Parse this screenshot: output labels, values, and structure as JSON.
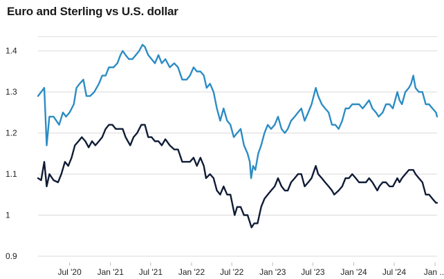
{
  "chart_data": {
    "type": "line",
    "title": "Euro and Sterling vs U.S. dollar",
    "xlabel": "",
    "ylabel": "",
    "ylim": [
      0.9,
      1.45
    ],
    "y_ticks": [
      "0.9",
      "1",
      "1.1",
      "1.2",
      "1.3",
      "1.4"
    ],
    "y_tick_values": [
      0.9,
      1.0,
      1.1,
      1.2,
      1.3,
      1.4
    ],
    "x_ticks": [
      {
        "label": "Jul '20",
        "date": "2020-07-01"
      },
      {
        "label": "Jan '21",
        "date": "2021-01-01"
      },
      {
        "label": "Jul '21",
        "date": "2021-07-01"
      },
      {
        "label": "Jan '22",
        "date": "2022-01-01"
      },
      {
        "label": "Jul '22",
        "date": "2022-07-01"
      },
      {
        "label": "Jan '23",
        "date": "2023-01-01"
      },
      {
        "label": "Jul '23",
        "date": "2023-07-01"
      },
      {
        "label": "Jan '24",
        "date": "2024-01-01"
      },
      {
        "label": "Jul '24",
        "date": "2024-07-01"
      },
      {
        "label": "Jan ...",
        "date": "2025-01-01"
      }
    ],
    "xlim": [
      "2020-02-10",
      "2025-01-10"
    ],
    "grid": true,
    "series": [
      {
        "color": "#2b8cc4",
        "points": [
          [
            "2020-02-10",
            1.29
          ],
          [
            "2020-02-24",
            1.3
          ],
          [
            "2020-03-09",
            1.31
          ],
          [
            "2020-03-20",
            1.17
          ],
          [
            "2020-04-01",
            1.24
          ],
          [
            "2020-04-20",
            1.24
          ],
          [
            "2020-05-15",
            1.22
          ],
          [
            "2020-06-01",
            1.25
          ],
          [
            "2020-06-15",
            1.24
          ],
          [
            "2020-07-01",
            1.25
          ],
          [
            "2020-07-20",
            1.27
          ],
          [
            "2020-08-01",
            1.31
          ],
          [
            "2020-08-15",
            1.32
          ],
          [
            "2020-09-01",
            1.33
          ],
          [
            "2020-09-15",
            1.29
          ],
          [
            "2020-10-01",
            1.29
          ],
          [
            "2020-10-20",
            1.3
          ],
          [
            "2020-11-10",
            1.32
          ],
          [
            "2020-11-25",
            1.34
          ],
          [
            "2020-12-10",
            1.34
          ],
          [
            "2020-12-25",
            1.36
          ],
          [
            "2021-01-15",
            1.36
          ],
          [
            "2021-02-01",
            1.37
          ],
          [
            "2021-02-15",
            1.39
          ],
          [
            "2021-02-25",
            1.4
          ],
          [
            "2021-03-10",
            1.39
          ],
          [
            "2021-03-25",
            1.38
          ],
          [
            "2021-04-10",
            1.38
          ],
          [
            "2021-04-25",
            1.39
          ],
          [
            "2021-05-10",
            1.4
          ],
          [
            "2021-05-25",
            1.415
          ],
          [
            "2021-06-05",
            1.41
          ],
          [
            "2021-06-20",
            1.39
          ],
          [
            "2021-07-05",
            1.38
          ],
          [
            "2021-07-20",
            1.37
          ],
          [
            "2021-08-05",
            1.39
          ],
          [
            "2021-08-20",
            1.37
          ],
          [
            "2021-09-05",
            1.38
          ],
          [
            "2021-09-25",
            1.36
          ],
          [
            "2021-10-15",
            1.37
          ],
          [
            "2021-11-01",
            1.36
          ],
          [
            "2021-11-20",
            1.33
          ],
          [
            "2021-12-10",
            1.33
          ],
          [
            "2021-12-25",
            1.34
          ],
          [
            "2022-01-10",
            1.36
          ],
          [
            "2022-01-25",
            1.35
          ],
          [
            "2022-02-10",
            1.35
          ],
          [
            "2022-02-25",
            1.34
          ],
          [
            "2022-03-10",
            1.31
          ],
          [
            "2022-03-25",
            1.32
          ],
          [
            "2022-04-10",
            1.3
          ],
          [
            "2022-04-25",
            1.26
          ],
          [
            "2022-05-10",
            1.23
          ],
          [
            "2022-05-25",
            1.26
          ],
          [
            "2022-06-10",
            1.23
          ],
          [
            "2022-06-25",
            1.22
          ],
          [
            "2022-07-10",
            1.19
          ],
          [
            "2022-07-25",
            1.2
          ],
          [
            "2022-08-10",
            1.21
          ],
          [
            "2022-08-25",
            1.17
          ],
          [
            "2022-09-10",
            1.15
          ],
          [
            "2022-09-20",
            1.13
          ],
          [
            "2022-09-26",
            1.09
          ],
          [
            "2022-10-05",
            1.12
          ],
          [
            "2022-10-15",
            1.11
          ],
          [
            "2022-10-28",
            1.15
          ],
          [
            "2022-11-10",
            1.17
          ],
          [
            "2022-11-25",
            1.2
          ],
          [
            "2022-12-10",
            1.22
          ],
          [
            "2022-12-25",
            1.21
          ],
          [
            "2023-01-10",
            1.22
          ],
          [
            "2023-01-25",
            1.24
          ],
          [
            "2023-02-10",
            1.21
          ],
          [
            "2023-02-25",
            1.2
          ],
          [
            "2023-03-10",
            1.21
          ],
          [
            "2023-03-25",
            1.23
          ],
          [
            "2023-04-10",
            1.24
          ],
          [
            "2023-04-25",
            1.25
          ],
          [
            "2023-05-10",
            1.26
          ],
          [
            "2023-05-25",
            1.23
          ],
          [
            "2023-06-10",
            1.25
          ],
          [
            "2023-06-25",
            1.27
          ],
          [
            "2023-07-14",
            1.31
          ],
          [
            "2023-07-25",
            1.29
          ],
          [
            "2023-08-10",
            1.27
          ],
          [
            "2023-08-25",
            1.26
          ],
          [
            "2023-09-10",
            1.25
          ],
          [
            "2023-09-25",
            1.22
          ],
          [
            "2023-10-10",
            1.22
          ],
          [
            "2023-10-25",
            1.21
          ],
          [
            "2023-11-10",
            1.23
          ],
          [
            "2023-11-25",
            1.26
          ],
          [
            "2023-12-10",
            1.26
          ],
          [
            "2023-12-25",
            1.27
          ],
          [
            "2024-01-10",
            1.27
          ],
          [
            "2024-01-25",
            1.27
          ],
          [
            "2024-02-10",
            1.26
          ],
          [
            "2024-02-25",
            1.27
          ],
          [
            "2024-03-10",
            1.28
          ],
          [
            "2024-03-25",
            1.26
          ],
          [
            "2024-04-10",
            1.25
          ],
          [
            "2024-04-22",
            1.24
          ],
          [
            "2024-05-10",
            1.25
          ],
          [
            "2024-05-25",
            1.27
          ],
          [
            "2024-06-10",
            1.27
          ],
          [
            "2024-06-25",
            1.26
          ],
          [
            "2024-07-15",
            1.3
          ],
          [
            "2024-07-25",
            1.28
          ],
          [
            "2024-08-05",
            1.27
          ],
          [
            "2024-08-20",
            1.3
          ],
          [
            "2024-09-05",
            1.31
          ],
          [
            "2024-09-15",
            1.32
          ],
          [
            "2024-09-25",
            1.34
          ],
          [
            "2024-10-05",
            1.31
          ],
          [
            "2024-10-20",
            1.3
          ],
          [
            "2024-11-05",
            1.3
          ],
          [
            "2024-11-20",
            1.27
          ],
          [
            "2024-12-05",
            1.27
          ],
          [
            "2024-12-20",
            1.26
          ],
          [
            "2025-01-05",
            1.25
          ],
          [
            "2025-01-10",
            1.24
          ]
        ]
      },
      {
        "color": "#0f1b35",
        "points": [
          [
            "2020-02-10",
            1.09
          ],
          [
            "2020-02-24",
            1.085
          ],
          [
            "2020-03-09",
            1.13
          ],
          [
            "2020-03-20",
            1.07
          ],
          [
            "2020-04-01",
            1.1
          ],
          [
            "2020-04-20",
            1.085
          ],
          [
            "2020-05-10",
            1.08
          ],
          [
            "2020-05-25",
            1.1
          ],
          [
            "2020-06-10",
            1.13
          ],
          [
            "2020-06-25",
            1.12
          ],
          [
            "2020-07-10",
            1.14
          ],
          [
            "2020-07-25",
            1.17
          ],
          [
            "2020-08-10",
            1.18
          ],
          [
            "2020-08-25",
            1.19
          ],
          [
            "2020-09-10",
            1.18
          ],
          [
            "2020-09-25",
            1.165
          ],
          [
            "2020-10-10",
            1.18
          ],
          [
            "2020-10-25",
            1.17
          ],
          [
            "2020-11-10",
            1.18
          ],
          [
            "2020-11-25",
            1.19
          ],
          [
            "2020-12-10",
            1.21
          ],
          [
            "2020-12-25",
            1.22
          ],
          [
            "2021-01-10",
            1.22
          ],
          [
            "2021-01-25",
            1.21
          ],
          [
            "2021-02-10",
            1.21
          ],
          [
            "2021-02-25",
            1.21
          ],
          [
            "2021-03-10",
            1.19
          ],
          [
            "2021-03-31",
            1.17
          ],
          [
            "2021-04-15",
            1.19
          ],
          [
            "2021-05-01",
            1.2
          ],
          [
            "2021-05-20",
            1.22
          ],
          [
            "2021-06-05",
            1.22
          ],
          [
            "2021-06-20",
            1.19
          ],
          [
            "2021-07-05",
            1.19
          ],
          [
            "2021-07-20",
            1.18
          ],
          [
            "2021-08-05",
            1.18
          ],
          [
            "2021-08-20",
            1.17
          ],
          [
            "2021-09-05",
            1.185
          ],
          [
            "2021-09-25",
            1.17
          ],
          [
            "2021-10-15",
            1.16
          ],
          [
            "2021-11-01",
            1.16
          ],
          [
            "2021-11-20",
            1.13
          ],
          [
            "2021-12-10",
            1.13
          ],
          [
            "2021-12-25",
            1.13
          ],
          [
            "2022-01-10",
            1.14
          ],
          [
            "2022-01-25",
            1.12
          ],
          [
            "2022-02-10",
            1.14
          ],
          [
            "2022-02-25",
            1.12
          ],
          [
            "2022-03-07",
            1.09
          ],
          [
            "2022-03-25",
            1.1
          ],
          [
            "2022-04-10",
            1.09
          ],
          [
            "2022-04-25",
            1.06
          ],
          [
            "2022-05-10",
            1.05
          ],
          [
            "2022-05-25",
            1.07
          ],
          [
            "2022-06-10",
            1.05
          ],
          [
            "2022-06-25",
            1.05
          ],
          [
            "2022-07-14",
            1.0
          ],
          [
            "2022-07-25",
            1.02
          ],
          [
            "2022-08-10",
            1.02
          ],
          [
            "2022-08-25",
            1.0
          ],
          [
            "2022-09-10",
            1.0
          ],
          [
            "2022-09-28",
            0.97
          ],
          [
            "2022-10-10",
            0.98
          ],
          [
            "2022-10-25",
            0.98
          ],
          [
            "2022-11-10",
            1.02
          ],
          [
            "2022-11-25",
            1.04
          ],
          [
            "2022-12-10",
            1.05
          ],
          [
            "2022-12-25",
            1.06
          ],
          [
            "2023-01-10",
            1.07
          ],
          [
            "2023-01-25",
            1.09
          ],
          [
            "2023-02-10",
            1.07
          ],
          [
            "2023-02-25",
            1.06
          ],
          [
            "2023-03-10",
            1.06
          ],
          [
            "2023-03-25",
            1.08
          ],
          [
            "2023-04-10",
            1.09
          ],
          [
            "2023-04-25",
            1.1
          ],
          [
            "2023-05-10",
            1.1
          ],
          [
            "2023-05-25",
            1.07
          ],
          [
            "2023-06-10",
            1.08
          ],
          [
            "2023-06-25",
            1.09
          ],
          [
            "2023-07-14",
            1.12
          ],
          [
            "2023-07-25",
            1.1
          ],
          [
            "2023-08-10",
            1.09
          ],
          [
            "2023-08-25",
            1.08
          ],
          [
            "2023-09-10",
            1.07
          ],
          [
            "2023-09-25",
            1.06
          ],
          [
            "2023-10-05",
            1.05
          ],
          [
            "2023-10-25",
            1.06
          ],
          [
            "2023-11-10",
            1.07
          ],
          [
            "2023-11-25",
            1.09
          ],
          [
            "2023-12-10",
            1.09
          ],
          [
            "2023-12-25",
            1.1
          ],
          [
            "2024-01-10",
            1.09
          ],
          [
            "2024-01-25",
            1.08
          ],
          [
            "2024-02-10",
            1.08
          ],
          [
            "2024-02-25",
            1.08
          ],
          [
            "2024-03-10",
            1.09
          ],
          [
            "2024-03-25",
            1.08
          ],
          [
            "2024-04-16",
            1.06
          ],
          [
            "2024-04-25",
            1.07
          ],
          [
            "2024-05-10",
            1.08
          ],
          [
            "2024-05-25",
            1.08
          ],
          [
            "2024-06-10",
            1.07
          ],
          [
            "2024-06-25",
            1.07
          ],
          [
            "2024-07-15",
            1.09
          ],
          [
            "2024-07-25",
            1.08
          ],
          [
            "2024-08-05",
            1.09
          ],
          [
            "2024-08-20",
            1.1
          ],
          [
            "2024-09-05",
            1.11
          ],
          [
            "2024-09-15",
            1.11
          ],
          [
            "2024-09-25",
            1.11
          ],
          [
            "2024-10-05",
            1.1
          ],
          [
            "2024-10-20",
            1.09
          ],
          [
            "2024-11-05",
            1.08
          ],
          [
            "2024-11-20",
            1.05
          ],
          [
            "2024-12-05",
            1.05
          ],
          [
            "2024-12-20",
            1.04
          ],
          [
            "2025-01-05",
            1.03
          ],
          [
            "2025-01-10",
            1.03
          ]
        ]
      }
    ]
  }
}
